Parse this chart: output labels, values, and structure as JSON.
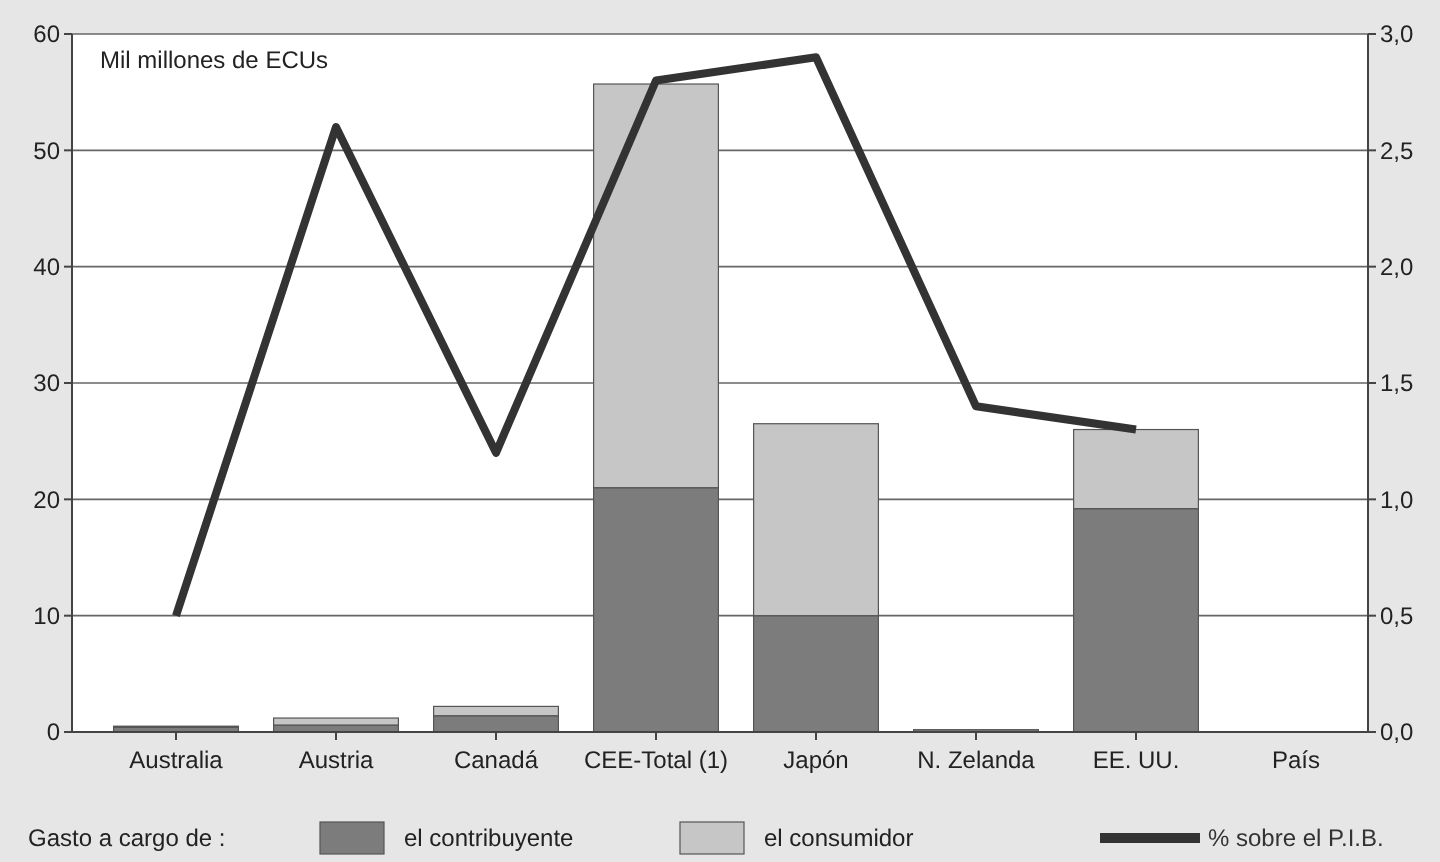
{
  "chart_data": {
    "type": "bar",
    "stacked": true,
    "ylabel": "Mil millones de ECUs",
    "xlabel": "País",
    "legend_title": "Gasto a cargo de :",
    "categories": [
      "Australia",
      "Austria",
      "Canadá",
      "CEE-Total (1)",
      "Japón",
      "N. Zelanda",
      "EE. UU."
    ],
    "series": [
      {
        "name": "el contribuyente",
        "color": "#7c7c7c",
        "values": [
          0.4,
          0.6,
          1.4,
          21,
          10,
          0.2,
          19.2
        ]
      },
      {
        "name": "el consumidor",
        "color": "#c6c6c6",
        "values": [
          0.1,
          0.6,
          0.8,
          34.7,
          16.5,
          0,
          6.8
        ]
      },
      {
        "name": "% sobre el P.I.B.",
        "type": "line",
        "axis": "y2",
        "color": "#333333",
        "values": [
          0.5,
          2.6,
          1.2,
          2.8,
          2.9,
          1.4,
          1.3
        ]
      }
    ],
    "ylim": [
      0,
      60
    ],
    "yticks": [
      0,
      10,
      20,
      30,
      40,
      50,
      60
    ],
    "y2lim": [
      0,
      3
    ],
    "y2ticks": [
      {
        "value": 0,
        "label": "0,0"
      },
      {
        "value": 0.5,
        "label": "0,5"
      },
      {
        "value": 1,
        "label": "1,0"
      },
      {
        "value": 1.5,
        "label": "1,5"
      },
      {
        "value": 2,
        "label": "2,0"
      },
      {
        "value": 2.5,
        "label": "2,5"
      },
      {
        "value": 3,
        "label": "3,0"
      }
    ],
    "grid": "y",
    "legend": "bottom",
    "marker": "none",
    "line_style": "solid"
  }
}
